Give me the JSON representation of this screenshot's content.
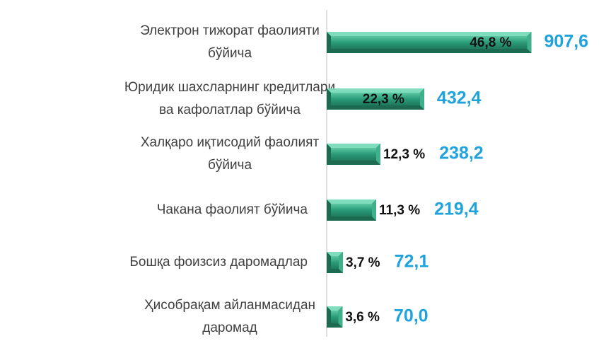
{
  "chart_data": {
    "type": "bar",
    "categories": [
      [
        "Электрон тижорат фаолияти",
        "бўйича"
      ],
      [
        "Юридик шахсларнинг кредитлари",
        "ва кафолатлар бўйича"
      ],
      [
        "Халқаро иқтисодий фаолият",
        "бўйича"
      ],
      [
        "Чакана фаолият бўйича"
      ],
      [
        "Бошқа фоизсиз даромадлар"
      ],
      [
        "Ҳисобрақам айланмасидан",
        "даромад"
      ]
    ],
    "values": [
      907.6,
      432.4,
      238.2,
      219.4,
      72.1,
      70.0
    ],
    "value_labels": [
      "907,6",
      "432,4",
      "238,2",
      "219,4",
      "72,1",
      "70,0"
    ],
    "share_labels": [
      "46,8 %",
      "22,3 %",
      "12,3 %",
      "11,3 %",
      "3,7 %",
      "3,6 %"
    ],
    "color": "#2a9b78",
    "xlim": [
      0,
      1000
    ]
  }
}
